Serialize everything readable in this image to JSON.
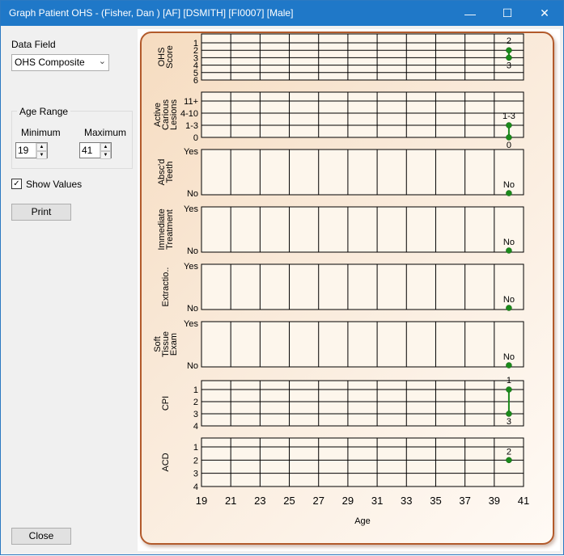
{
  "window": {
    "title": "Graph Patient OHS - (Fisher, Dan ) [AF] [DSMITH] [FI0007] [Male]",
    "controls": [
      "—",
      "☐",
      "✕"
    ]
  },
  "left": {
    "data_field_label": "Data Field",
    "data_field_value": "OHS Composite",
    "age_range_label": "Age Range",
    "minimum_label": "Minimum",
    "minimum_value": "19",
    "maximum_label": "Maximum",
    "maximum_value": "41",
    "show_values_label": "Show Values",
    "show_values_checked": true,
    "print_label": "Print",
    "close_label": "Close"
  },
  "chart_data": {
    "type": "line",
    "x_ticks": [
      "19",
      "21",
      "23",
      "25",
      "27",
      "29",
      "31",
      "33",
      "35",
      "37",
      "39",
      "41"
    ],
    "xlim": [
      19,
      41
    ],
    "xlabel": "Age",
    "panels": [
      {
        "label": "OHS Score",
        "ticks": [
          "1",
          "2",
          "3",
          "4",
          "5",
          "6"
        ],
        "points": [
          {
            "x": 40,
            "y": 2,
            "label": "2"
          },
          {
            "x": 40,
            "y": 3,
            "label": "3"
          }
        ]
      },
      {
        "label": "Active Carious Lesions",
        "ticks": [
          "11+",
          "4-10",
          "1-3",
          "0"
        ],
        "points": [
          {
            "x": 40,
            "y": "1-3",
            "label": "1-3"
          },
          {
            "x": 40,
            "y": "0",
            "label": "0"
          }
        ]
      },
      {
        "label": "Absc'd Teeth",
        "ticks": [
          "Yes",
          "No"
        ],
        "points": [
          {
            "x": 40,
            "y": "No",
            "label": "No"
          }
        ]
      },
      {
        "label": "Immediate Treatment",
        "ticks": [
          "Yes",
          "No"
        ],
        "points": [
          {
            "x": 40,
            "y": "No",
            "label": "No"
          }
        ]
      },
      {
        "label": "Extractio..",
        "ticks": [
          "Yes",
          "No"
        ],
        "points": [
          {
            "x": 40,
            "y": "No",
            "label": "No"
          }
        ]
      },
      {
        "label": "Soft Tissue Exam",
        "ticks": [
          "Yes",
          "No"
        ],
        "points": [
          {
            "x": 40,
            "y": "No",
            "label": "No"
          }
        ]
      },
      {
        "label": "CPI",
        "ticks": [
          "1",
          "2",
          "3",
          "4"
        ],
        "points": [
          {
            "x": 40,
            "y": 1,
            "label": "1"
          },
          {
            "x": 40,
            "y": 3,
            "label": "3"
          }
        ]
      },
      {
        "label": "ACD",
        "ticks": [
          "1",
          "2",
          "3",
          "4"
        ],
        "points": [
          {
            "x": 40,
            "y": 2,
            "label": "2"
          }
        ]
      }
    ],
    "colors": {
      "point": "#1a8a1a",
      "line": "#1a8a1a",
      "grid": "#000000",
      "panel_bg": "#fdf6ec"
    }
  }
}
